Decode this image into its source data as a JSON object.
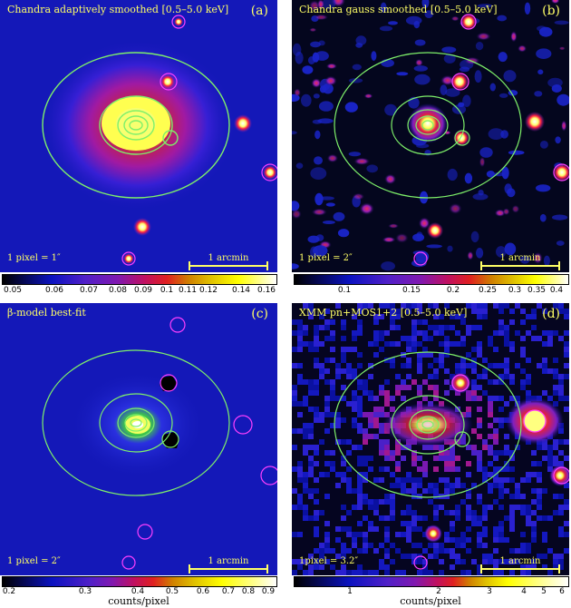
{
  "panels": {
    "a": {
      "title": "Chandra adaptively smoothed [0.5–5.0 keV]",
      "letter": "(a)",
      "pixel_scale": "1 pixel = 1″",
      "scale_bar": "1 arcmin",
      "colorbar_ticks": [
        "0.05",
        "0.06",
        "0.07",
        "0.08",
        "0.09",
        "0.1",
        "0.11",
        "0.12",
        "0.14",
        "0.16"
      ]
    },
    "b": {
      "title": "Chandra gauss smoothed [0.5–5.0 keV]",
      "letter": "(b)",
      "pixel_scale": "1 pixel = 2″",
      "scale_bar": "1 arcmin",
      "colorbar_ticks": [
        "0.1",
        "0.15",
        "0.2",
        "0.25",
        "0.3",
        "0.35",
        "0.4"
      ]
    },
    "c": {
      "title": "β-model best-fit",
      "letter": "(c)",
      "pixel_scale": "1 pixel = 2″",
      "scale_bar": "1 arcmin",
      "colorbar_ticks": [
        "0.2",
        "0.3",
        "0.4",
        "0.5",
        "0.6",
        "0.7",
        "0.8",
        "0.9"
      ],
      "colorbar_label": "counts/pixel"
    },
    "d": {
      "title": "XMM pn+MOS1+2 [0.5–5.0 keV]",
      "letter": "(d)",
      "pixel_scale": "1pixel = 3.2″",
      "scale_bar": "1 arcmin",
      "colorbar_ticks": [
        "1",
        "2",
        "3",
        "4",
        "5",
        "6"
      ],
      "colorbar_label": "counts/pixel"
    }
  },
  "colors": {
    "background_blue": "#0a14c8",
    "contour_green": "#7ef06a",
    "label_yellow": "#ffff66",
    "source_circle": "#ff3fff"
  }
}
